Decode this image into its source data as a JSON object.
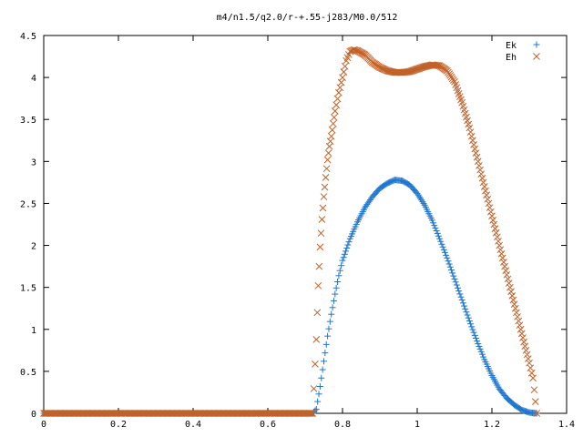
{
  "chart_data": {
    "type": "scatter",
    "title": "m4/n1.5/q2.0/r-+.55-j283/M0.0/512",
    "xlim": [
      0,
      1.4
    ],
    "ylim": [
      0,
      4.5
    ],
    "xticks": [
      "0",
      "0.2",
      "0.4",
      "0.6",
      "0.8",
      "1",
      "1.2",
      "1.4"
    ],
    "yticks": [
      "0",
      "0.5",
      "1",
      "1.5",
      "2",
      "2.5",
      "3",
      "3.5",
      "4",
      "4.5"
    ],
    "legend_position": "top-right",
    "grid": false,
    "series": [
      {
        "name": "Ek",
        "marker": "plus",
        "color": "#1f77d0",
        "points": [
          [
            0.0,
            0
          ],
          [
            0.1,
            0
          ],
          [
            0.2,
            0
          ],
          [
            0.3,
            0
          ],
          [
            0.4,
            0
          ],
          [
            0.5,
            0
          ],
          [
            0.6,
            0
          ],
          [
            0.72,
            0
          ],
          [
            0.73,
            0.05
          ],
          [
            0.74,
            0.32
          ],
          [
            0.75,
            0.62
          ],
          [
            0.76,
            0.92
          ],
          [
            0.77,
            1.18
          ],
          [
            0.78,
            1.42
          ],
          [
            0.79,
            1.64
          ],
          [
            0.8,
            1.82
          ],
          [
            0.82,
            2.08
          ],
          [
            0.84,
            2.28
          ],
          [
            0.86,
            2.45
          ],
          [
            0.88,
            2.58
          ],
          [
            0.9,
            2.68
          ],
          [
            0.92,
            2.74
          ],
          [
            0.94,
            2.78
          ],
          [
            0.96,
            2.77
          ],
          [
            0.98,
            2.72
          ],
          [
            1.0,
            2.62
          ],
          [
            1.02,
            2.48
          ],
          [
            1.04,
            2.3
          ],
          [
            1.06,
            2.08
          ],
          [
            1.08,
            1.85
          ],
          [
            1.1,
            1.6
          ],
          [
            1.12,
            1.35
          ],
          [
            1.14,
            1.1
          ],
          [
            1.16,
            0.86
          ],
          [
            1.18,
            0.64
          ],
          [
            1.2,
            0.45
          ],
          [
            1.22,
            0.29
          ],
          [
            1.24,
            0.18
          ],
          [
            1.26,
            0.1
          ],
          [
            1.28,
            0.04
          ],
          [
            1.3,
            0.01
          ],
          [
            1.32,
            0
          ]
        ]
      },
      {
        "name": "Eh",
        "marker": "cross",
        "color": "#c0622a",
        "points": [
          [
            0.0,
            0
          ],
          [
            0.1,
            0
          ],
          [
            0.2,
            0
          ],
          [
            0.3,
            0
          ],
          [
            0.4,
            0
          ],
          [
            0.5,
            0
          ],
          [
            0.6,
            0
          ],
          [
            0.72,
            0
          ],
          [
            0.73,
            0.88
          ],
          [
            0.735,
            1.52
          ],
          [
            0.74,
            1.98
          ],
          [
            0.745,
            2.31
          ],
          [
            0.75,
            2.58
          ],
          [
            0.755,
            2.81
          ],
          [
            0.76,
            3.02
          ],
          [
            0.765,
            3.18
          ],
          [
            0.77,
            3.3
          ],
          [
            0.775,
            3.45
          ],
          [
            0.78,
            3.6
          ],
          [
            0.79,
            3.82
          ],
          [
            0.8,
            4.0
          ],
          [
            0.81,
            4.2
          ],
          [
            0.82,
            4.31
          ],
          [
            0.83,
            4.33
          ],
          [
            0.84,
            4.32
          ],
          [
            0.86,
            4.27
          ],
          [
            0.88,
            4.18
          ],
          [
            0.9,
            4.12
          ],
          [
            0.92,
            4.08
          ],
          [
            0.94,
            4.06
          ],
          [
            0.96,
            4.06
          ],
          [
            0.98,
            4.07
          ],
          [
            1.0,
            4.1
          ],
          [
            1.02,
            4.13
          ],
          [
            1.04,
            4.15
          ],
          [
            1.06,
            4.14
          ],
          [
            1.08,
            4.08
          ],
          [
            1.1,
            3.95
          ],
          [
            1.12,
            3.7
          ],
          [
            1.14,
            3.4
          ],
          [
            1.16,
            3.05
          ],
          [
            1.18,
            2.7
          ],
          [
            1.2,
            2.35
          ],
          [
            1.22,
            2.0
          ],
          [
            1.24,
            1.65
          ],
          [
            1.26,
            1.3
          ],
          [
            1.28,
            0.95
          ],
          [
            1.3,
            0.6
          ],
          [
            1.31,
            0.42
          ],
          [
            1.32,
            0
          ]
        ]
      }
    ]
  }
}
